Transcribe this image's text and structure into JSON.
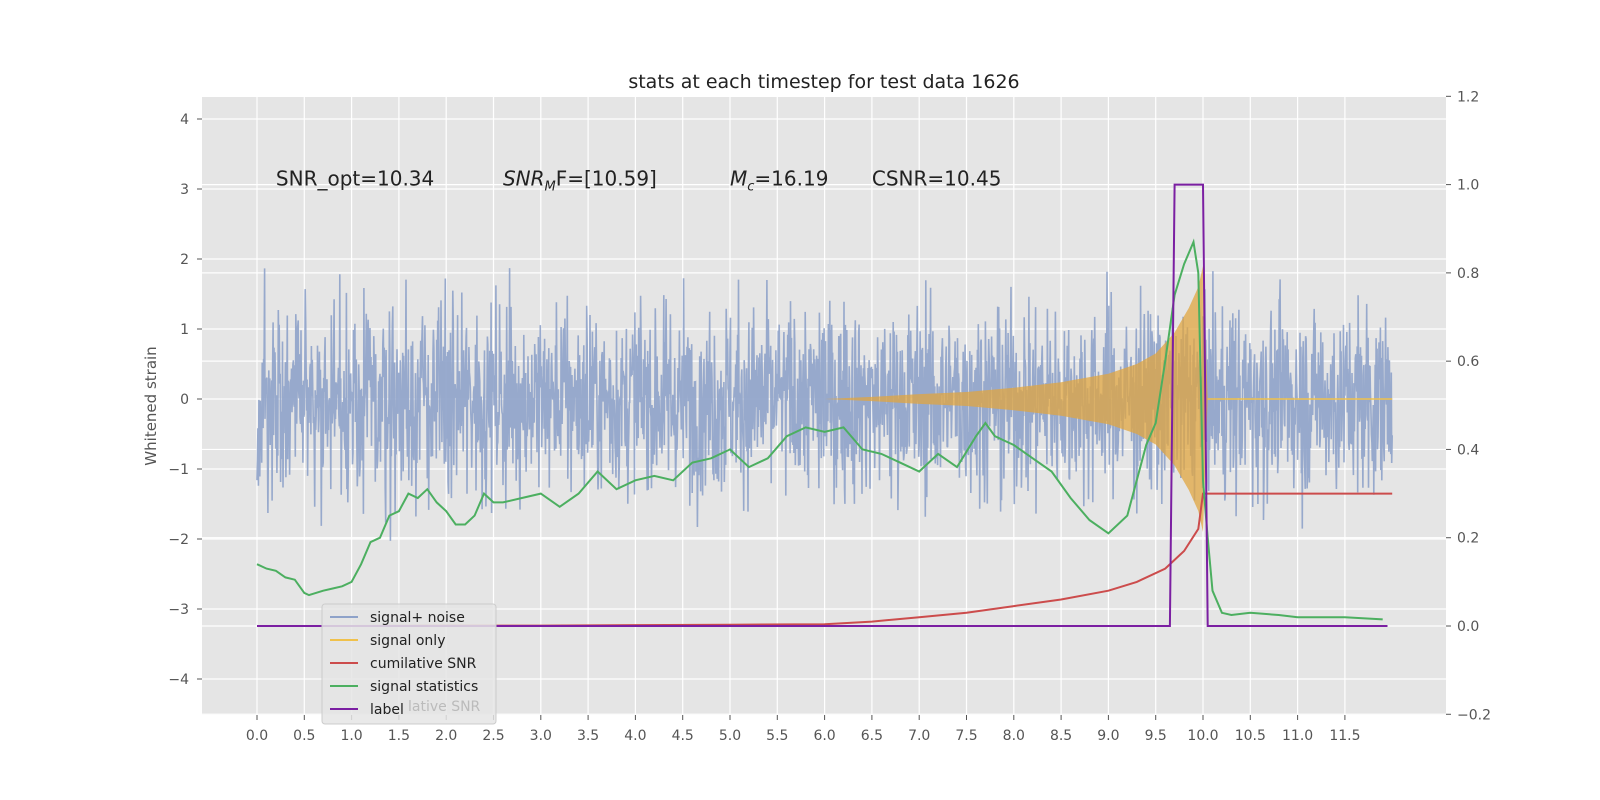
{
  "chart_data": {
    "type": "line",
    "title": "stats at each timestep for test data 1626",
    "ylabel_left": "Whitened strain",
    "ylabel_right": "",
    "xlabel": "",
    "xlim": [
      -0.6,
      12.4
    ],
    "ylim_left": [
      -4.5,
      4.3
    ],
    "ylim_right": [
      -0.2,
      1.2
    ],
    "grid": true,
    "background": "#e5e5e5",
    "x_ticks": [
      "0.0",
      "0.5",
      "1.0",
      "1.5",
      "2.0",
      "2.5",
      "3.0",
      "3.5",
      "4.0",
      "4.5",
      "5.0",
      "5.5",
      "6.0",
      "6.5",
      "7.0",
      "7.5",
      "8.0",
      "8.5",
      "9.0",
      "9.5",
      "10.0",
      "10.5",
      "11.0",
      "11.5"
    ],
    "y_ticks_left": [
      "4",
      "3",
      "2",
      "1",
      "0",
      "−1",
      "−2",
      "−3",
      "−4"
    ],
    "y_ticks_right": [
      "1.2",
      "1.0",
      "0.8",
      "0.6",
      "0.4",
      "0.2",
      "0.0",
      "−0.2"
    ],
    "annotations": [
      {
        "text": "SNR_opt=10.34",
        "x": 0.2,
        "y": 3.05
      },
      {
        "base": "SNR",
        "sub": "M",
        "rest": "F=[10.59]",
        "x": 2.6,
        "y": 3.05
      },
      {
        "base": "M",
        "sub": "c",
        "rest": "=16.19",
        "x": 5.0,
        "y": 3.05
      },
      {
        "text": "CSNR=10.45",
        "x": 6.5,
        "y": 3.05
      }
    ],
    "legend": {
      "position": "lower-left",
      "entries": [
        {
          "label": "signal+ noise",
          "color": "#8ea2c9"
        },
        {
          "label": "signal only",
          "color": "#f0c14b"
        },
        {
          "label": "cumilative SNR",
          "color": "#cc4c4c"
        },
        {
          "label": "signal statistics",
          "color": "#4caf60"
        },
        {
          "label": "label",
          "color": "#7b1fa2"
        }
      ],
      "ghost_text": "lative SNR"
    },
    "series": [
      {
        "name": "signal+ noise",
        "axis": "left",
        "color": "#8ea2c9",
        "description_range": [
          0,
          12
        ],
        "typical_envelope": [
          -2.2,
          2.1
        ]
      },
      {
        "name": "signal only",
        "axis": "left",
        "color": "#f0c14b",
        "x": [
          6.0,
          6.5,
          7.0,
          7.5,
          8.0,
          8.5,
          9.0,
          9.3,
          9.5,
          9.7,
          9.85,
          9.95,
          10.0,
          10.05,
          12.0
        ],
        "amplitude": [
          0.0,
          0.03,
          0.07,
          0.1,
          0.16,
          0.24,
          0.36,
          0.5,
          0.65,
          0.95,
          1.3,
          1.6,
          1.9,
          0.0,
          0.0
        ]
      },
      {
        "name": "cumilative SNR",
        "axis": "right",
        "color": "#cc4c4c",
        "x": [
          0.0,
          1.0,
          2.0,
          3.0,
          4.0,
          5.0,
          6.0,
          6.5,
          7.0,
          7.5,
          8.0,
          8.5,
          9.0,
          9.3,
          9.6,
          9.8,
          9.95,
          10.0,
          12.0
        ],
        "y": [
          0.0,
          0.0,
          0.001,
          0.001,
          0.002,
          0.003,
          0.004,
          0.01,
          0.02,
          0.03,
          0.045,
          0.06,
          0.08,
          0.1,
          0.13,
          0.17,
          0.22,
          0.3,
          0.3
        ]
      },
      {
        "name": "signal statistics",
        "axis": "right",
        "color": "#4caf60",
        "x": [
          0.0,
          0.1,
          0.2,
          0.3,
          0.4,
          0.5,
          0.55,
          0.7,
          0.8,
          0.9,
          1.0,
          1.1,
          1.2,
          1.3,
          1.4,
          1.5,
          1.6,
          1.7,
          1.8,
          1.9,
          2.0,
          2.1,
          2.2,
          2.3,
          2.4,
          2.5,
          2.6,
          2.8,
          3.0,
          3.2,
          3.4,
          3.6,
          3.8,
          4.0,
          4.2,
          4.4,
          4.6,
          4.8,
          5.0,
          5.2,
          5.4,
          5.6,
          5.8,
          6.0,
          6.2,
          6.4,
          6.6,
          6.8,
          7.0,
          7.2,
          7.4,
          7.6,
          7.7,
          7.8,
          7.9,
          8.0,
          8.2,
          8.4,
          8.6,
          8.8,
          9.0,
          9.2,
          9.4,
          9.5,
          9.6,
          9.7,
          9.8,
          9.9,
          9.95,
          10.0,
          10.05,
          10.1,
          10.2,
          10.3,
          10.5,
          10.8,
          11.0,
          11.5,
          11.9
        ],
        "y": [
          0.14,
          0.13,
          0.125,
          0.11,
          0.105,
          0.075,
          0.07,
          0.08,
          0.085,
          0.09,
          0.1,
          0.14,
          0.19,
          0.2,
          0.25,
          0.26,
          0.3,
          0.29,
          0.31,
          0.28,
          0.26,
          0.23,
          0.23,
          0.25,
          0.3,
          0.28,
          0.28,
          0.29,
          0.3,
          0.27,
          0.3,
          0.35,
          0.31,
          0.33,
          0.34,
          0.33,
          0.37,
          0.38,
          0.4,
          0.36,
          0.38,
          0.43,
          0.45,
          0.44,
          0.45,
          0.4,
          0.39,
          0.37,
          0.35,
          0.39,
          0.36,
          0.43,
          0.46,
          0.43,
          0.42,
          0.41,
          0.38,
          0.35,
          0.29,
          0.24,
          0.21,
          0.25,
          0.41,
          0.46,
          0.6,
          0.75,
          0.82,
          0.87,
          0.8,
          0.33,
          0.2,
          0.08,
          0.03,
          0.025,
          0.03,
          0.025,
          0.02,
          0.02,
          0.015
        ]
      },
      {
        "name": "label",
        "axis": "right",
        "color": "#7b1fa2",
        "x": [
          0.0,
          9.65,
          9.7,
          10.0,
          10.05,
          11.95
        ],
        "y": [
          0.0,
          0.0,
          1.0,
          1.0,
          0.0,
          0.0
        ]
      }
    ]
  }
}
